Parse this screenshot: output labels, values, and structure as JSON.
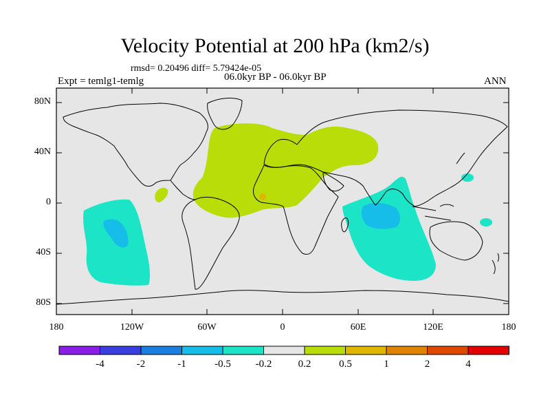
{
  "title": "Velocity Potential at 200 hPa (km2/s)",
  "stats_line": "rmsd= 0.20496 diff= 5.79424e-05",
  "experiment_label": "Expt = temlg1-temlg",
  "period_label": "06.0kyr BP - 06.0kyr BP",
  "season_label": "ANN",
  "lat_labels": [
    "80N",
    "40N",
    "0",
    "40S",
    "80S"
  ],
  "lon_labels": [
    "180",
    "120W",
    "60W",
    "0",
    "60E",
    "120E",
    "180"
  ],
  "colorbar": {
    "labels": [
      "-4",
      "-2",
      "-1",
      "-0.5",
      "-0.2",
      "0.2",
      "0.5",
      "1",
      "2",
      "4"
    ],
    "colors": [
      "#8a1de8",
      "#3a3de0",
      "#1a7fe0",
      "#16bde8",
      "#1ce4c6",
      "#e6e6e6",
      "#b8dd08",
      "#e0b600",
      "#e08400",
      "#e04800",
      "#e20000"
    ]
  },
  "colors": {
    "background_field": "#e6e6e6",
    "positive_weak": "#b8dd08",
    "positive_mid": "#e0b600",
    "negative_weak": "#1ce4c6",
    "negative_mid": "#16bde8"
  }
}
